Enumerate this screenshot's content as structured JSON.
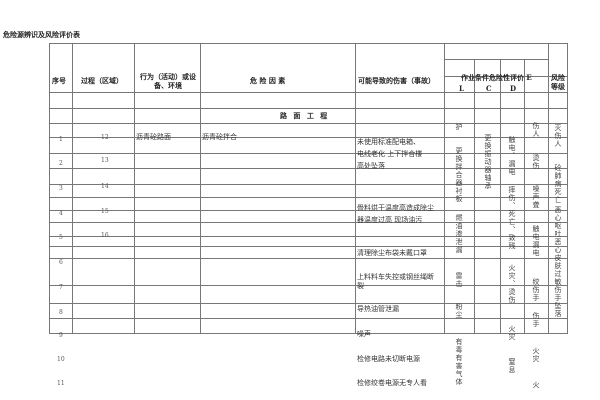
{
  "title": "危险源辨识及风险评价表",
  "headers": {
    "no": "序号",
    "process": "过程（区域）",
    "activity": "行为（活动）或设备、环境",
    "factor": "危 险 因 素",
    "harm": "可能导致的伤害（事故）",
    "eval": "作业条件危险性评价 E",
    "L": "L",
    "C": "C",
    "D": "D",
    "risk": "风险等级"
  },
  "section": "路 面 工 程",
  "rows": [
    {
      "no": "1",
      "process": "12",
      "activity": "沥青砼路面",
      "factor": "沥青砼拌合"
    },
    {
      "no": "2",
      "process": "13"
    },
    {
      "no": "3",
      "process": "14"
    },
    {
      "no": "4",
      "process": "15"
    },
    {
      "no": "5",
      "process": "16"
    },
    {
      "no": "6"
    },
    {
      "no": "7"
    },
    {
      "no": "8"
    },
    {
      "no": "9"
    },
    {
      "no": "10"
    },
    {
      "no": "11"
    }
  ],
  "harms": [
    "未使用标准配电箱、电线老化 上下拌合楼高处坠落",
    "骨料烘干温度高造成除尘器温度过高 现场油污",
    "清理除尘布袋未戴口罩",
    "上料料车失控或钢丝绳断裂",
    "导热油管泄漏",
    "噪声",
    "检修电路未切断电源",
    "检修绞卷电源无专人看"
  ],
  "col_L": [
    "护",
    "更换拌合器衬板",
    "燃油渗泄漏",
    "雷击",
    "粉尘",
    "有毒有害气体"
  ],
  "col_C": [
    "更换振动器轴承"
  ],
  "col_D": [
    "触电、漏电",
    "摔伤、死亡、致残",
    "火灾、烫伤",
    "火灾",
    "窒息"
  ],
  "col_E": [
    "伤人",
    "烫伤",
    "噪声聋",
    "触电漏电",
    "绞伤手",
    "伤手",
    "火灾",
    "火"
  ],
  "col_risk": [
    "灭伤人",
    "砼肺病死亡",
    "恶心呕吐恶心皮肤过敏伤手坠落"
  ]
}
